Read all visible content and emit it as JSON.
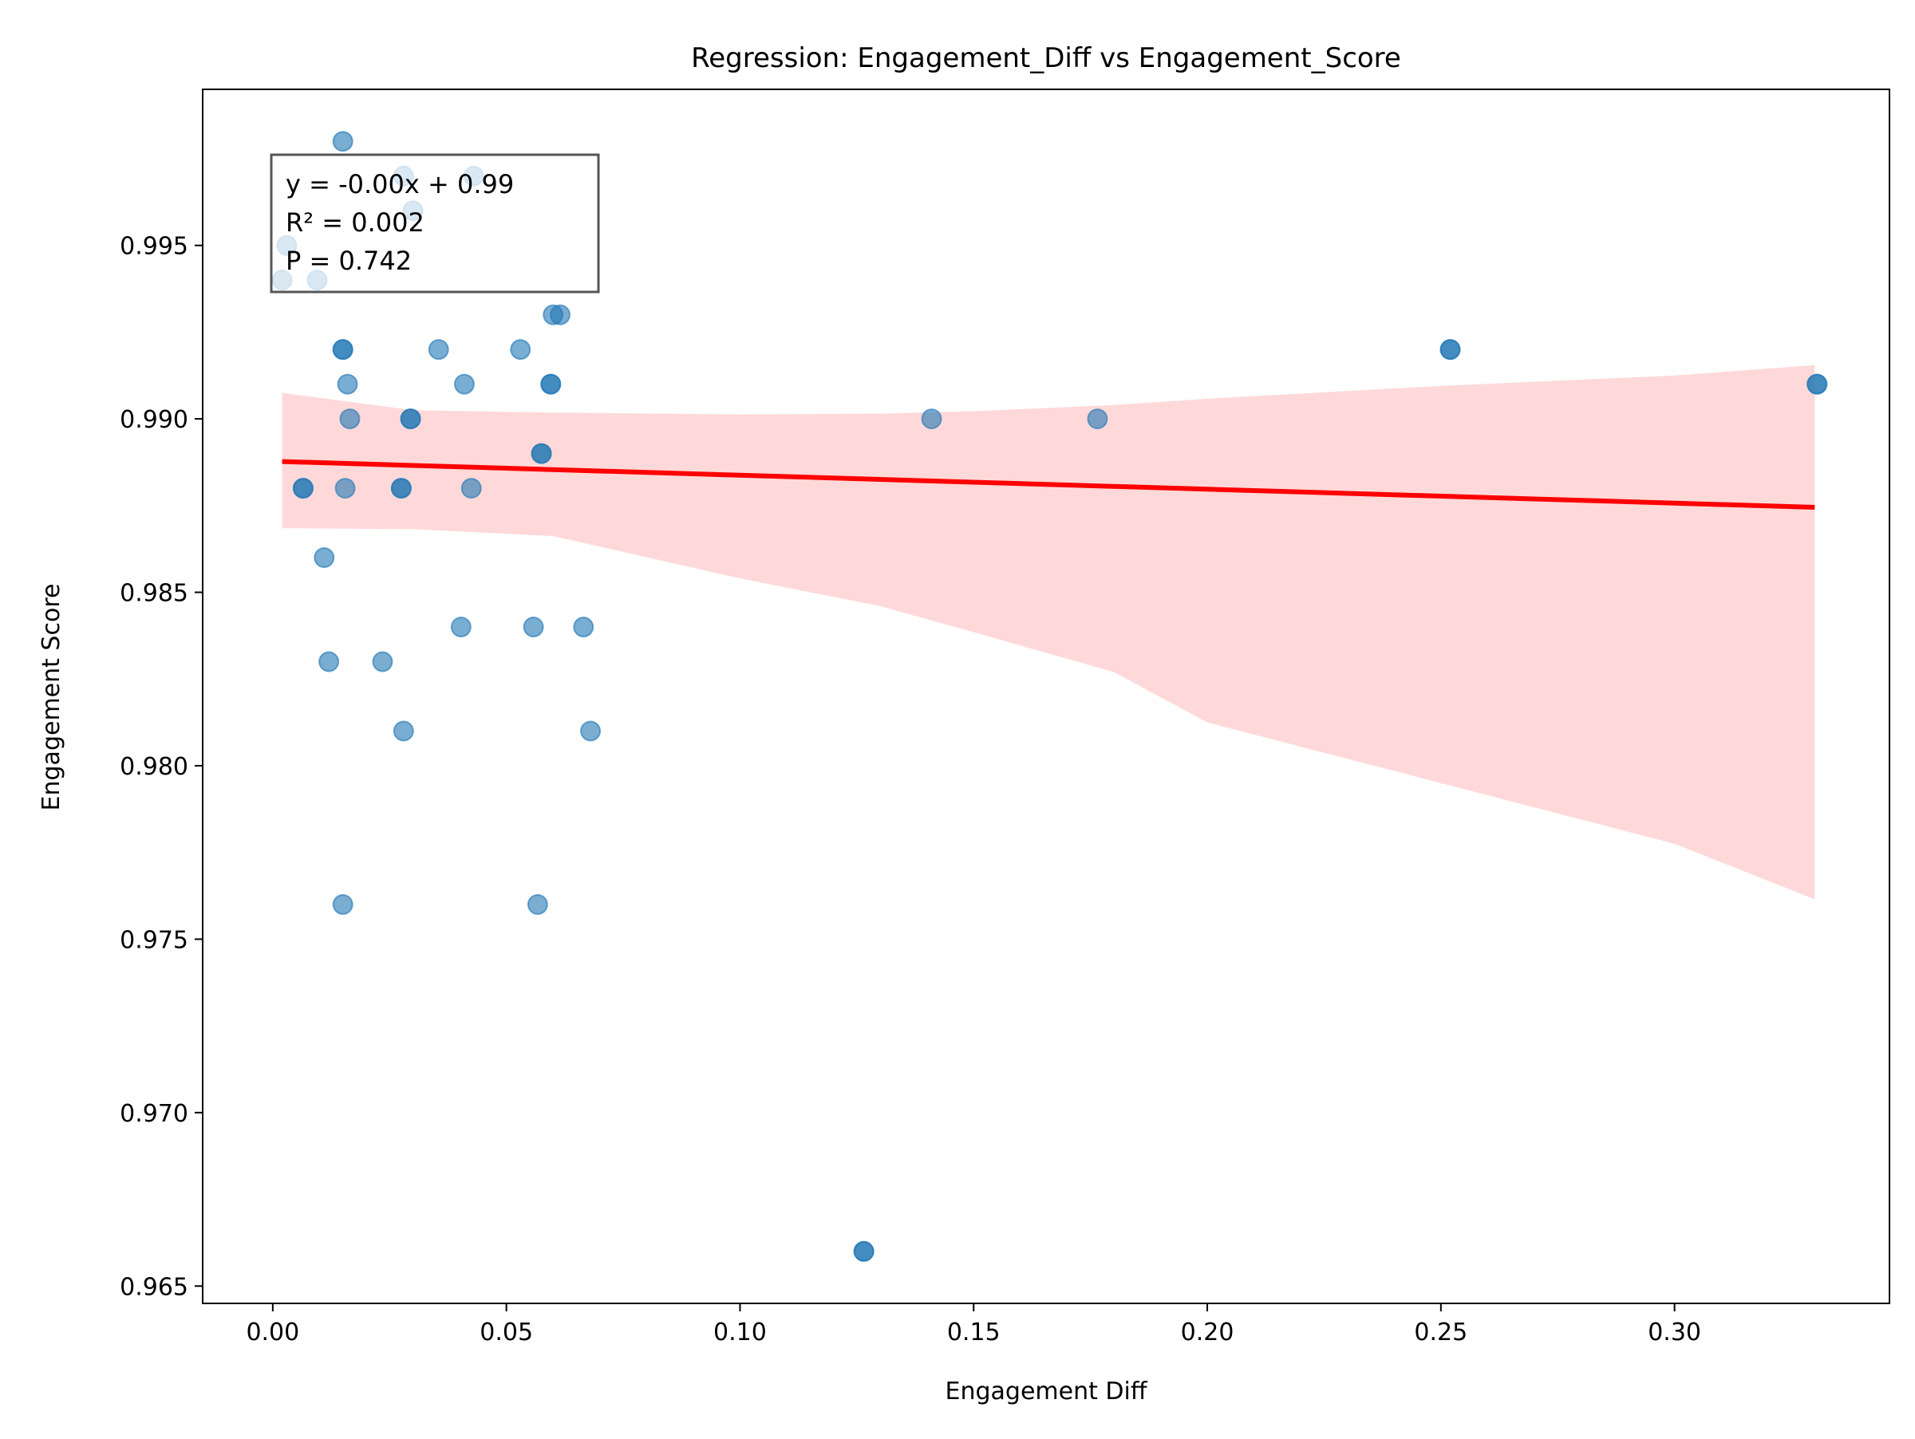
{
  "chart_data": {
    "type": "scatter",
    "title": "Regression: Engagement_Diff vs Engagement_Score",
    "xlabel": "Engagement Diff",
    "ylabel": "Engagement Score",
    "xlim": [
      -0.015,
      0.346
    ],
    "ylim": [
      0.9645,
      0.9995
    ],
    "x_ticks": [
      0.0,
      0.05,
      0.1,
      0.15,
      0.2,
      0.25,
      0.3
    ],
    "x_tick_labels": [
      "0.00",
      "0.05",
      "0.10",
      "0.15",
      "0.20",
      "0.25",
      "0.30"
    ],
    "y_ticks": [
      0.965,
      0.97,
      0.975,
      0.98,
      0.985,
      0.99,
      0.995
    ],
    "y_tick_labels": [
      "0.965",
      "0.970",
      "0.975",
      "0.980",
      "0.985",
      "0.990",
      "0.995"
    ],
    "grid": false,
    "annotation": {
      "lines": [
        "y = -0.00x + 0.99",
        "R² = 0.002",
        "P = 0.742"
      ],
      "placement": "top-left"
    },
    "series": [
      {
        "kind": "points",
        "color": "#1f77b4",
        "x": [
          0.015,
          0.028,
          0.043,
          0.03,
          0.003,
          0.002,
          0.0095,
          0.015,
          0.015,
          0.0355,
          0.053,
          0.016,
          0.041,
          0.06,
          0.0615,
          0.0595,
          0.0595,
          0.0165,
          0.0295,
          0.0295,
          0.141,
          0.1765,
          0.0575,
          0.0575,
          0.0065,
          0.0065,
          0.0275,
          0.0275,
          0.0155,
          0.0425,
          0.011,
          0.012,
          0.0235,
          0.0403,
          0.0558,
          0.0665,
          0.028,
          0.068,
          0.015,
          0.0567,
          0.1265,
          0.1265,
          0.252,
          0.252,
          0.3305,
          0.3305
        ],
        "y": [
          0.998,
          0.997,
          0.997,
          0.996,
          0.995,
          0.994,
          0.994,
          0.992,
          0.992,
          0.992,
          0.992,
          0.991,
          0.991,
          0.993,
          0.993,
          0.991,
          0.991,
          0.99,
          0.99,
          0.99,
          0.99,
          0.99,
          0.989,
          0.989,
          0.988,
          0.988,
          0.988,
          0.988,
          0.988,
          0.988,
          0.986,
          0.983,
          0.983,
          0.984,
          0.984,
          0.984,
          0.981,
          0.981,
          0.976,
          0.976,
          0.966,
          0.966,
          0.992,
          0.992,
          0.991,
          0.991
        ]
      },
      {
        "kind": "regression-line",
        "color": "#ff0000",
        "x": [
          0.002,
          0.33
        ],
        "y": [
          0.98877,
          0.98745
        ]
      },
      {
        "kind": "confidence-band",
        "color": "#ffcccc",
        "x": [
          0.002,
          0.03,
          0.06,
          0.1,
          0.13,
          0.15,
          0.18,
          0.2,
          0.25,
          0.3,
          0.33
        ],
        "upper": [
          0.99075,
          0.99025,
          0.99018,
          0.99013,
          0.99015,
          0.99022,
          0.9904,
          0.99058,
          0.99095,
          0.99125,
          0.99155
        ],
        "lower": [
          0.98685,
          0.98682,
          0.98662,
          0.9854,
          0.9846,
          0.98385,
          0.9827,
          0.98125,
          0.9795,
          0.97775,
          0.97615
        ]
      }
    ]
  }
}
